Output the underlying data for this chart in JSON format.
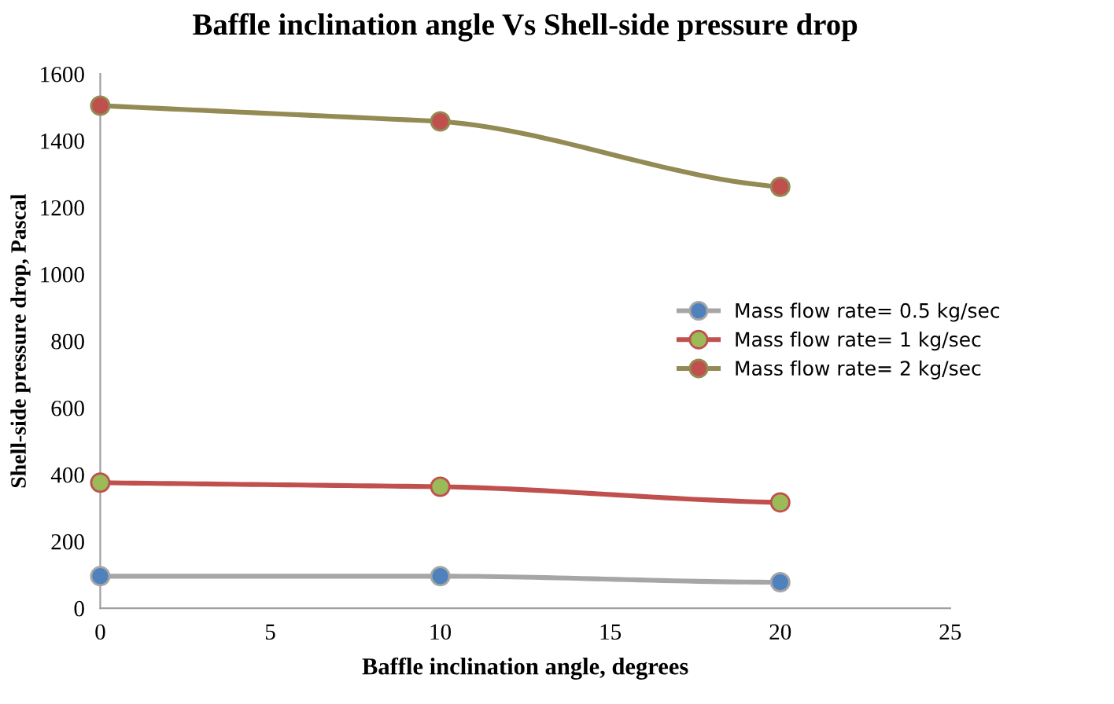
{
  "chart_data": {
    "type": "line",
    "title": "Baffle inclination angle Vs Shell-side pressure drop",
    "xlabel": "Baffle inclination angle, degrees",
    "ylabel": "Shell-side pressure drop, Pascal",
    "x": [
      0,
      10,
      20
    ],
    "series": [
      {
        "name": "Mass flow rate= 0.5 kg/sec",
        "color": "#a6a6a6",
        "colors": [
          "#4f81bd",
          "#4f81bd",
          "#4f81bd"
        ],
        "values": [
          96,
          96,
          78
        ]
      },
      {
        "name": "Mass flow rate= 1 kg/sec",
        "color": "#c0504d",
        "colors": [
          "#9bbb59",
          "#9bbb59",
          "#9bbb59"
        ],
        "values": [
          376,
          364,
          317
        ]
      },
      {
        "name": "Mass flow rate= 2 kg/sec",
        "color": "#948a54",
        "colors": [
          "#c0504d",
          "#c0504d",
          "#c0504d"
        ],
        "values": [
          1505,
          1458,
          1262
        ]
      }
    ],
    "xlim": [
      0,
      25
    ],
    "xticks": [
      0,
      5,
      10,
      15,
      20,
      25
    ],
    "ylim": [
      0,
      1600
    ],
    "yticks": [
      0,
      200,
      400,
      600,
      800,
      1000,
      1200,
      1400,
      1600
    ],
    "grid": false,
    "legend": "right",
    "marker": "circle",
    "line_style": "solid"
  }
}
